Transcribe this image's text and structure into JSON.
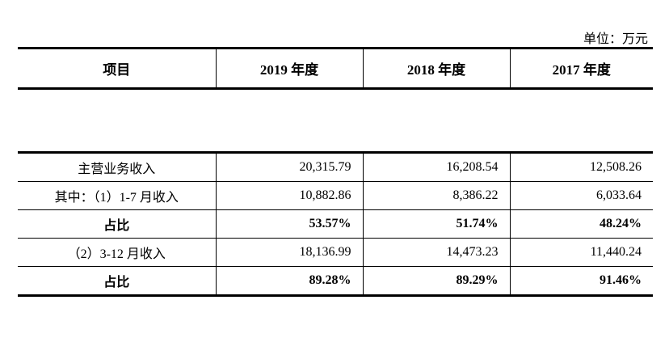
{
  "unit_label": "单位：万元",
  "header": {
    "item": "项目",
    "y2019": "2019 年度",
    "y2018": "2018 年度",
    "y2017": "2017 年度"
  },
  "rows": [
    {
      "label": "主营业务收入",
      "y2019": "20,315.79",
      "y2018": "16,208.54",
      "y2017": "12,508.26"
    },
    {
      "label": "其中：（1）1-7 月收入",
      "y2019": "10,882.86",
      "y2018": "8,386.22",
      "y2017": "6,033.64"
    },
    {
      "label": "占比",
      "y2019": "53.57%",
      "y2018": "51.74%",
      "y2017": "48.24%"
    },
    {
      "label": "（2）3-12 月收入",
      "y2019": "18,136.99",
      "y2018": "14,473.23",
      "y2017": "11,440.24"
    },
    {
      "label": "占比",
      "y2019": "89.28%",
      "y2018": "89.29%",
      "y2017": "91.46%"
    }
  ]
}
